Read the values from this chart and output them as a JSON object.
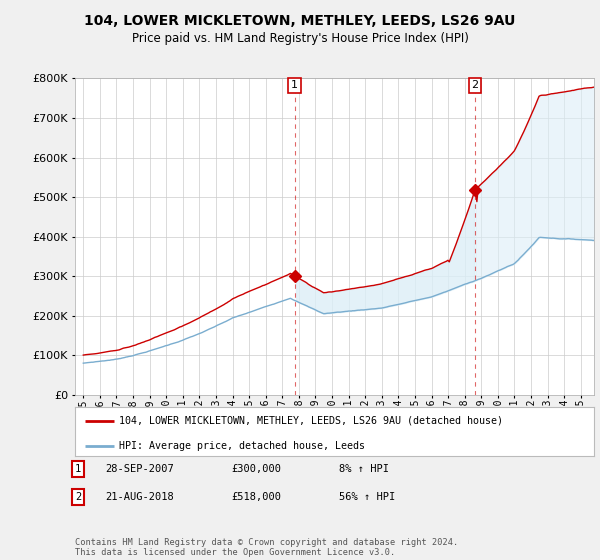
{
  "title": "104, LOWER MICKLETOWN, METHLEY, LEEDS, LS26 9AU",
  "subtitle": "Price paid vs. HM Land Registry's House Price Index (HPI)",
  "legend_line1": "104, LOWER MICKLETOWN, METHLEY, LEEDS, LS26 9AU (detached house)",
  "legend_line2": "HPI: Average price, detached house, Leeds",
  "sale1_date": "28-SEP-2007",
  "sale1_price": "£300,000",
  "sale1_hpi": "8% ↑ HPI",
  "sale1_year": 2007.75,
  "sale1_value": 300000,
  "sale2_date": "21-AUG-2018",
  "sale2_price": "£518,000",
  "sale2_hpi": "56% ↑ HPI",
  "sale2_year": 2018.63,
  "sale2_value": 518000,
  "red_color": "#cc0000",
  "blue_color": "#7aadcf",
  "shade_color": "#dceef7",
  "background_color": "#f0f0f0",
  "plot_bg_color": "#ffffff",
  "copyright_text": "Contains HM Land Registry data © Crown copyright and database right 2024.\nThis data is licensed under the Open Government Licence v3.0.",
  "ylim": [
    0,
    800000
  ],
  "xlim_start": 1994.5,
  "xlim_end": 2025.8
}
